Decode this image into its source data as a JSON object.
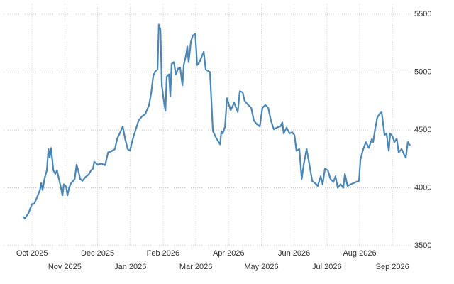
{
  "chart_data": {
    "type": "line",
    "xlim": [
      -0.87,
      11.58
    ],
    "xticks": [
      {
        "value": 0,
        "label": "Oct 2025"
      },
      {
        "value": 1,
        "label": "Nov 2025"
      },
      {
        "value": 2,
        "label": "Dec 2025"
      },
      {
        "value": 3,
        "label": "Jan 2026"
      },
      {
        "value": 4,
        "label": "Feb 2026"
      },
      {
        "value": 5,
        "label": "Mar 2026"
      },
      {
        "value": 6,
        "label": "Apr 2026"
      },
      {
        "value": 7,
        "label": "May 2026"
      },
      {
        "value": 8,
        "label": "Jun 2026"
      },
      {
        "value": 9,
        "label": "Jul 2026"
      },
      {
        "value": 10,
        "label": "Aug 2026"
      },
      {
        "value": 11,
        "label": "Sep 2026"
      }
    ],
    "ylim": [
      3500,
      5590
    ],
    "yticks": [
      3500,
      4000,
      4500,
      5000,
      5500
    ],
    "grid": true,
    "series": [
      {
        "color": "#4a86b6",
        "x": [
          -0.28,
          -0.22,
          -0.11,
          0,
          0.06,
          0.15,
          0.24,
          0.28,
          0.32,
          0.39,
          0.45,
          0.5,
          0.54,
          0.58,
          0.65,
          0.71,
          0.76,
          0.87,
          0.93,
          0.97,
          1.04,
          1.08,
          1.13,
          1.19,
          1.3,
          1.36,
          1.41,
          1.47,
          1.54,
          1.62,
          1.73,
          1.8,
          1.86,
          1.9,
          2.01,
          2.12,
          2.23,
          2.32,
          2.45,
          2.53,
          2.6,
          2.71,
          2.77,
          2.84,
          2.92,
          2.99,
          3.05,
          3.14,
          3.25,
          3.35,
          3.46,
          3.57,
          3.64,
          3.7,
          3.77,
          3.83,
          3.87,
          3.92,
          3.96,
          4.03,
          4.07,
          4.11,
          4.18,
          4.22,
          4.26,
          4.33,
          4.39,
          4.46,
          4.52,
          4.59,
          4.63,
          4.7,
          4.74,
          4.78,
          4.85,
          4.91,
          4.98,
          5.04,
          5.11,
          5.17,
          5.24,
          5.3,
          5.37,
          5.43,
          5.52,
          5.63,
          5.74,
          5.78,
          5.82,
          5.89,
          5.95,
          6.06,
          6.17,
          6.28,
          6.34,
          6.43,
          6.49,
          6.6,
          6.69,
          6.77,
          6.86,
          6.95,
          7.03,
          7.12,
          7.21,
          7.29,
          7.38,
          7.47,
          7.58,
          7.64,
          7.68,
          7.77,
          7.86,
          7.94,
          8.01,
          8.07,
          8.16,
          8.23,
          8.29,
          8.38,
          8.46,
          8.55,
          8.64,
          8.72,
          8.81,
          8.87,
          8.94,
          9.03,
          9.11,
          9.2,
          9.26,
          9.33,
          9.42,
          9.5,
          9.55,
          9.63,
          9.72,
          9.81,
          9.89,
          9.98,
          10.02,
          10.11,
          10.19,
          10.28,
          10.37,
          10.41,
          10.48,
          10.54,
          10.61,
          10.67,
          10.76,
          10.82,
          10.89,
          10.93,
          11,
          11.06,
          11.13,
          11.19,
          11.28,
          11.36,
          11.41,
          11.47,
          11.54
        ],
        "values": [
          3750,
          3735,
          3780,
          3860,
          3860,
          3915,
          3980,
          4040,
          3980,
          4090,
          4150,
          4335,
          4260,
          4345,
          4150,
          4120,
          4150,
          4015,
          3935,
          4030,
          4010,
          3935,
          4000,
          4040,
          4075,
          4200,
          4150,
          4075,
          4060,
          4090,
          4115,
          4150,
          4165,
          4225,
          4200,
          4210,
          4195,
          4305,
          4320,
          4335,
          4425,
          4490,
          4530,
          4425,
          4335,
          4320,
          4395,
          4480,
          4580,
          4615,
          4640,
          4715,
          4825,
          4970,
          5010,
          5020,
          5410,
          5365,
          4885,
          4735,
          4665,
          4960,
          4980,
          4790,
          5070,
          5085,
          4980,
          5030,
          5040,
          4885,
          5060,
          5145,
          5220,
          5085,
          5265,
          5315,
          5330,
          5060,
          5085,
          5130,
          5175,
          5020,
          5010,
          5000,
          4490,
          4425,
          4375,
          4490,
          4470,
          4530,
          4775,
          4670,
          4735,
          4655,
          4835,
          4825,
          4750,
          4715,
          4690,
          4580,
          4550,
          4530,
          4690,
          4715,
          4690,
          4580,
          4505,
          4520,
          4530,
          4565,
          4470,
          4520,
          4470,
          4480,
          4455,
          4320,
          4335,
          4075,
          4200,
          4335,
          4210,
          4060,
          4040,
          4015,
          4100,
          4030,
          4165,
          4150,
          4075,
          4050,
          4100,
          4000,
          4030,
          4000,
          4120,
          4015,
          4030,
          4040,
          4050,
          4060,
          4240,
          4335,
          4395,
          4345,
          4420,
          4395,
          4520,
          4610,
          4640,
          4655,
          4455,
          4470,
          4320,
          4470,
          4445,
          4395,
          4425,
          4305,
          4335,
          4285,
          4260,
          4395,
          4365
        ]
      }
    ]
  }
}
